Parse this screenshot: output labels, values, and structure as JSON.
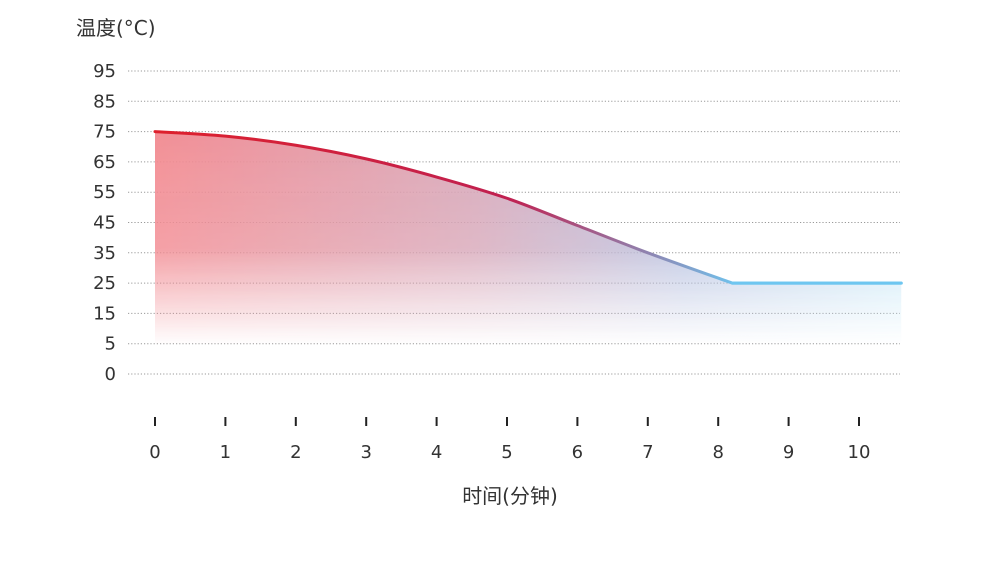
{
  "chart_data": {
    "type": "area",
    "ylabel": "温度(°C)",
    "xlabel": "时间(分钟)",
    "y_ticks": [
      0,
      5,
      15,
      25,
      35,
      45,
      55,
      65,
      75,
      85,
      95
    ],
    "x_ticks": [
      0,
      1,
      2,
      3,
      4,
      5,
      6,
      7,
      8,
      9,
      10
    ],
    "grid": true,
    "series": [
      {
        "x": [
          0,
          1,
          2,
          3,
          4,
          5,
          6,
          7,
          8.2,
          10.6
        ],
        "y": [
          75,
          73.5,
          70.5,
          66,
          60,
          53,
          44,
          35,
          25,
          25
        ]
      }
    ],
    "colors": {
      "line_start": "#e0202a",
      "line_end": "#6ec6f0",
      "fill_top": "#f4878d",
      "fill_mid": "#c7c9e3",
      "fill_end": "#d6eefa",
      "grid": "#9a9a9a",
      "text": "#333333"
    }
  }
}
